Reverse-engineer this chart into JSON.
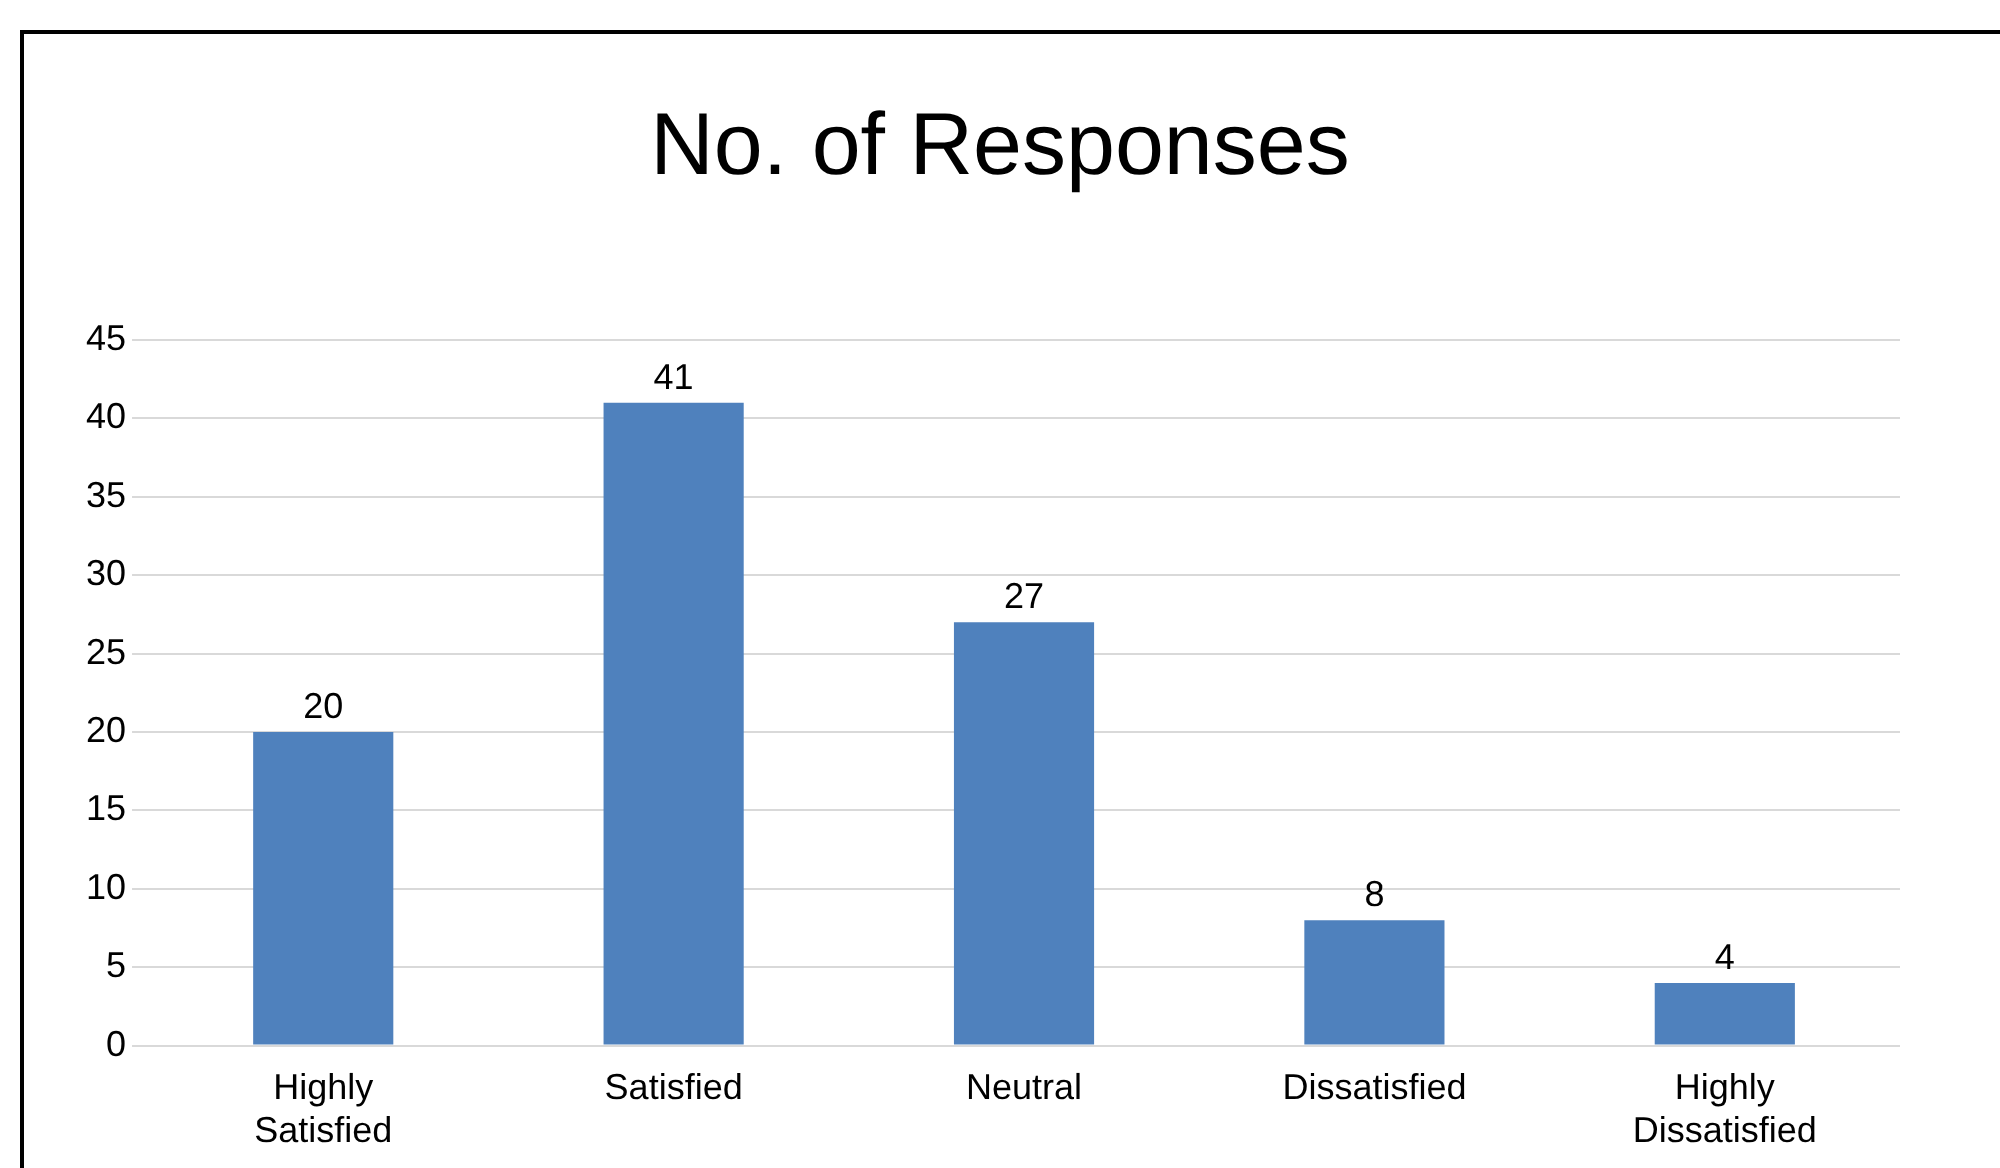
{
  "chart_data": {
    "type": "bar",
    "title": "No. of Responses",
    "categories": [
      "Highly Satisfied",
      "Satisfied",
      "Neutral",
      "Dissatisfied",
      "Highly Dissatisfied"
    ],
    "values": [
      20,
      41,
      27,
      8,
      4
    ],
    "color": "#4f81bd",
    "ylim": [
      0,
      45
    ],
    "yticks": [
      0,
      5,
      10,
      15,
      20,
      25,
      30,
      35,
      40,
      45
    ],
    "grid": "y",
    "data_labels": true
  }
}
